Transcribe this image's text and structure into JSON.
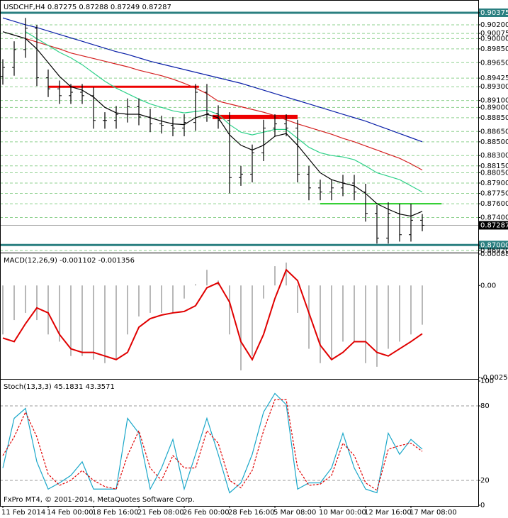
{
  "chart_data": [
    {
      "type": "ohlc",
      "title": "USDCHF,H4 0.87275 0.87288 0.87249 0.87287",
      "categories": [
        "11 Feb 2014",
        null,
        null,
        null,
        "14 Feb 00:00",
        null,
        null,
        null,
        "18 Feb 16:00",
        null,
        null,
        null,
        "21 Feb 08:00",
        null,
        null,
        null,
        "26 Feb 00:00",
        null,
        null,
        null,
        "28 Feb 16:00",
        null,
        null,
        null,
        "5 Mar 08:00",
        null,
        null,
        null,
        "10 Mar 00:00",
        null,
        null,
        null,
        "12 Mar 16:00",
        null,
        null,
        null,
        "17 Mar 08:00",
        null
      ],
      "open": [
        0.8945,
        0.8958,
        0.8984,
        0.9015,
        0.8943,
        0.8927,
        0.8917,
        0.8922,
        0.8917,
        0.8881,
        0.8881,
        0.889,
        0.8901,
        0.8886,
        0.8876,
        0.8874,
        0.887,
        0.8878,
        0.8922,
        0.8891,
        0.8881,
        0.8798,
        0.8803,
        0.8834,
        0.887,
        0.8876,
        0.887,
        0.8803,
        0.8783,
        0.8777,
        0.8783,
        0.879,
        0.8777,
        0.8746,
        0.871,
        0.8746,
        0.8715,
        0.8736
      ],
      "high": [
        0.897,
        0.8996,
        0.903,
        0.902,
        0.8955,
        0.8939,
        0.8934,
        0.8934,
        0.8929,
        0.8893,
        0.8902,
        0.8913,
        0.8913,
        0.8898,
        0.8888,
        0.8886,
        0.889,
        0.8934,
        0.8934,
        0.8903,
        0.8893,
        0.8815,
        0.8846,
        0.8882,
        0.889,
        0.889,
        0.8882,
        0.8815,
        0.8795,
        0.8795,
        0.8802,
        0.8802,
        0.8789,
        0.8758,
        0.8762,
        0.876,
        0.876,
        0.8745
      ],
      "low": [
        0.8933,
        0.8946,
        0.8972,
        0.8931,
        0.8915,
        0.8905,
        0.8905,
        0.8905,
        0.8869,
        0.8869,
        0.8869,
        0.8878,
        0.8874,
        0.8864,
        0.8862,
        0.8858,
        0.8858,
        0.8866,
        0.8879,
        0.8869,
        0.8775,
        0.8786,
        0.8791,
        0.8822,
        0.8858,
        0.8858,
        0.8791,
        0.8765,
        0.8765,
        0.8765,
        0.8771,
        0.8765,
        0.8734,
        0.8702,
        0.8702,
        0.8705,
        0.8705,
        0.872
      ],
      "close": [
        0.8958,
        0.8984,
        0.9015,
        0.8943,
        0.8927,
        0.8917,
        0.8922,
        0.8917,
        0.8881,
        0.8881,
        0.889,
        0.8901,
        0.8886,
        0.8876,
        0.8874,
        0.887,
        0.8878,
        0.8922,
        0.8891,
        0.8881,
        0.8798,
        0.8803,
        0.8834,
        0.887,
        0.8876,
        0.887,
        0.8803,
        0.8783,
        0.8777,
        0.8783,
        0.879,
        0.8777,
        0.8746,
        0.871,
        0.8746,
        0.8715,
        0.8736,
        0.87287
      ],
      "bar_color": "#000000",
      "series": [
        {
          "color": "#0a1fa8",
          "values": [
            0.903,
            0.9025,
            0.902,
            0.9016,
            0.9011,
            0.9006,
            0.9001,
            0.8996,
            0.8991,
            0.8986,
            0.8981,
            0.8977,
            0.8972,
            0.8967,
            0.8963,
            0.8959,
            0.8955,
            0.8951,
            0.8947,
            0.8943,
            0.8939,
            0.8935,
            0.893,
            0.8925,
            0.892,
            0.8915,
            0.891,
            0.8905,
            0.89,
            0.8895,
            0.889,
            0.8885,
            0.888,
            0.8874,
            0.8868,
            0.8862,
            0.8856,
            0.885
          ]
        },
        {
          "color": "#d42020",
          "values": [
            null,
            null,
            0.9,
            0.8995,
            0.899,
            0.8985,
            0.8979,
            0.8975,
            0.8971,
            0.8967,
            0.8963,
            0.8959,
            0.8954,
            0.895,
            0.8946,
            0.8941,
            0.8935,
            0.8928,
            0.892,
            0.8909,
            0.8905,
            0.8901,
            0.8897,
            0.8893,
            0.8888,
            0.8882,
            0.8876,
            0.8871,
            0.8866,
            0.8861,
            0.8855,
            0.885,
            0.8844,
            0.8838,
            0.8832,
            0.8826,
            0.8818,
            0.8809
          ]
        },
        {
          "color": "#2ed18a",
          "values": [
            null,
            null,
            0.901,
            0.9,
            0.899,
            0.898,
            0.8972,
            0.8962,
            0.895,
            0.8938,
            0.8928,
            0.892,
            0.8912,
            0.8905,
            0.89,
            0.8895,
            0.8892,
            0.8894,
            0.8896,
            0.889,
            0.8875,
            0.8864,
            0.886,
            0.8864,
            0.8868,
            0.8868,
            0.8855,
            0.8842,
            0.8834,
            0.883,
            0.8828,
            0.8824,
            0.8815,
            0.8805,
            0.88,
            0.8795,
            0.8786,
            0.8777
          ]
        },
        {
          "color": "#000000",
          "values": [
            0.901,
            0.9005,
            0.9,
            0.8985,
            0.8965,
            0.8945,
            0.893,
            0.8925,
            0.8915,
            0.89,
            0.8892,
            0.889,
            0.889,
            0.8885,
            0.888,
            0.8876,
            0.8875,
            0.8885,
            0.889,
            0.8885,
            0.886,
            0.8845,
            0.8838,
            0.8845,
            0.8858,
            0.8862,
            0.8845,
            0.8825,
            0.8805,
            0.8795,
            0.879,
            0.8786,
            0.8775,
            0.876,
            0.8752,
            0.8745,
            0.8742,
            0.8749
          ]
        }
      ],
      "ylim": [
        0.869,
        0.9055
      ],
      "yticks": [
        {
          "value": 0.90375,
          "label": "0.90375"
        },
        {
          "value": 0.902,
          "label": "0.90200"
        },
        {
          "value": 0.90075,
          "label": "0.90075"
        },
        {
          "value": 0.9,
          "label": "0.90000"
        },
        {
          "value": 0.8985,
          "label": "0.89850"
        },
        {
          "value": 0.8965,
          "label": "0.89650"
        },
        {
          "value": 0.89425,
          "label": "0.89425"
        },
        {
          "value": 0.893,
          "label": "0.89300"
        },
        {
          "value": 0.891,
          "label": "0.89100"
        },
        {
          "value": 0.89,
          "label": "0.89000"
        },
        {
          "value": 0.8885,
          "label": "0.88850"
        },
        {
          "value": 0.8865,
          "label": "0.88650"
        },
        {
          "value": 0.885,
          "label": "0.88500"
        },
        {
          "value": 0.883,
          "label": "0.88300"
        },
        {
          "value": 0.8815,
          "label": "0.88150"
        },
        {
          "value": 0.8805,
          "label": "0.88050"
        },
        {
          "value": 0.879,
          "label": "0.87900"
        },
        {
          "value": 0.8775,
          "label": "0.87750"
        },
        {
          "value": 0.876,
          "label": "0.87600"
        },
        {
          "value": 0.874,
          "label": "0.87400"
        },
        {
          "value": 0.87287,
          "label": "0.87287"
        },
        {
          "value": 0.87,
          "label": "0.87000"
        },
        {
          "value": 0.8692,
          "label": "0.86920"
        }
      ],
      "grid": true,
      "grid_color": "#8fd18f",
      "hlines": [
        {
          "value": 0.90375,
          "color": "#2a7f80",
          "width": 3,
          "tag": "#2a7f80"
        },
        {
          "value": 0.87,
          "color": "#2a7f80",
          "width": 3,
          "tag": "#2a7f80"
        },
        {
          "value": 0.87287,
          "color": "#a0a0a0",
          "width": 1,
          "tag": "#000000"
        },
        {
          "value": 0.893,
          "color": "#ee0000",
          "width": 3
        },
        {
          "value": 0.8886,
          "color": "#ee0000",
          "width": 6
        },
        {
          "value": 0.876,
          "color": "#22cc22",
          "width": 2
        }
      ]
    },
    {
      "type": "macd",
      "title": "MACD(12,26,9) -0.001102 -0.001356",
      "series": [
        {
          "style": "bar",
          "color": "#b8b8b8",
          "values": [
            -0.001375,
            -0.000972,
            -0.00077,
            -0.000972,
            -0.001375,
            -0.001577,
            -0.00198,
            -0.00198,
            -0.002081,
            -0.002181,
            -0.002081,
            -0.001375,
            -0.000871,
            -0.00077,
            -0.00077,
            -0.00077,
            -0.000367,
            3.6e-05,
            0.000439,
            0.000137,
            -0.001375,
            -0.002383,
            -0.00198,
            -0.000367,
            0.000541,
            0.000641,
            -0.00077,
            -0.001778,
            -0.002181,
            -0.002081,
            -0.001577,
            -0.001577,
            -0.002181,
            -0.002282,
            -0.001778,
            -0.001577,
            -0.001375,
            -0.001102
          ]
        },
        {
          "style": "line",
          "color": "#e00000",
          "values": [
            -0.001476,
            -0.001577,
            -0.001073,
            -0.000629,
            -0.00077,
            -0.001375,
            -0.001778,
            -0.001879,
            -0.001879,
            -0.00198,
            -0.002081,
            -0.001879,
            -0.001173,
            -0.000931,
            -0.000831,
            -0.00077,
            -0.00073,
            -0.000569,
            -6.5e-05,
            7.7e-05,
            -0.000468,
            -0.001577,
            -0.002081,
            -0.001375,
            -0.000367,
            0.00044,
            0.000137,
            -0.00077,
            -0.001677,
            -0.002081,
            -0.001879,
            -0.001577,
            -0.001577,
            -0.001879,
            -0.00198,
            -0.001778,
            -0.001577,
            -0.001356
          ]
        }
      ],
      "ylim": [
        -0.002584,
        0.000882
      ],
      "yticks": [
        {
          "value": 0.000882,
          "label": "0.000882"
        },
        {
          "value": 0,
          "label": "0.00"
        },
        {
          "value": -0.002584,
          "label": "-0.002584"
        }
      ],
      "grid": false
    },
    {
      "type": "stoch",
      "title": "Stoch(13,3,3) 45.1831 43.3571",
      "series": [
        {
          "style": "line",
          "color": "#1aa7c9",
          "values": [
            30,
            70,
            78,
            35,
            13,
            18,
            24,
            35,
            13,
            13,
            13,
            70,
            58,
            13,
            30,
            53,
            13,
            41,
            70,
            41,
            10,
            18,
            41,
            75,
            90,
            81,
            13,
            18,
            18,
            30,
            58,
            30,
            13,
            10,
            58,
            41,
            53,
            45.1831
          ]
        },
        {
          "style": "dash",
          "color": "#e00000",
          "values": [
            40,
            55,
            75,
            55,
            25,
            16,
            20,
            28,
            20,
            15,
            13,
            40,
            60,
            30,
            20,
            40,
            30,
            30,
            60,
            50,
            20,
            14,
            28,
            60,
            85,
            85,
            30,
            16,
            17,
            24,
            50,
            40,
            18,
            12,
            45,
            48,
            50,
            43.3571
          ]
        }
      ],
      "ylim": [
        0,
        100
      ],
      "yticks": [
        0,
        20,
        80,
        100
      ],
      "grid": true,
      "grid_color": "#9a9a9a"
    }
  ],
  "footer": "FxPro MT4, © 2001-2014, MetaQuotes Software Corp."
}
